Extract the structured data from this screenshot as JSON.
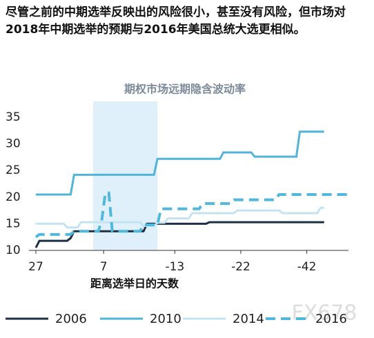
{
  "heading": "尽管之前的中期选举反映出的风险很小，甚至没有风险，但市场对2018年中期选举的预期与2016年美国总统大选更相似。",
  "watermark": "FX678",
  "chart_data": {
    "type": "line",
    "title": "期权市场远期隐含波动率",
    "x_label": "距离选举日的天数",
    "xlim": [
      0,
      90
    ],
    "ylim": [
      10,
      35
    ],
    "xticks": [
      {
        "value": 0,
        "label": "27"
      },
      {
        "value": 19.5,
        "label": "7"
      },
      {
        "value": 40,
        "label": "-13"
      },
      {
        "value": 59,
        "label": "-22"
      },
      {
        "value": 78,
        "label": "-42"
      }
    ],
    "yticks": [
      10,
      15,
      20,
      25,
      30,
      35
    ],
    "highlight_x": [
      16.5,
      35
    ],
    "highlight_color": "#dff0fa",
    "series": [
      {
        "name": "2006",
        "color": "#1c2f45",
        "dashed": false,
        "x": [
          0,
          1,
          9,
          10,
          11,
          31,
          32,
          49,
          50,
          83
        ],
        "values": [
          10.5,
          11.8,
          11.8,
          12.3,
          13.6,
          13.6,
          15.0,
          15.0,
          15.3,
          15.3
        ]
      },
      {
        "name": "2010",
        "color": "#4fb3da",
        "dashed": false,
        "x": [
          0,
          10,
          11,
          34,
          35,
          53,
          54,
          62,
          63,
          75,
          76,
          83
        ],
        "values": [
          20.5,
          20.5,
          24.2,
          24.2,
          27.2,
          27.2,
          28.4,
          28.4,
          27.6,
          27.6,
          32.3,
          32.3
        ]
      },
      {
        "name": "2014",
        "color": "#c3e3f2",
        "dashed": false,
        "x": [
          0,
          8,
          9,
          12,
          13,
          30,
          31,
          34,
          35,
          37,
          38,
          44,
          45,
          57,
          58,
          70,
          71,
          81,
          82,
          83
        ],
        "values": [
          15,
          15,
          14.3,
          14.3,
          15.3,
          15.3,
          14.6,
          14.6,
          15.2,
          15.2,
          16,
          16,
          17,
          17,
          17.5,
          17.5,
          17,
          17,
          18,
          18
        ]
      },
      {
        "name": "2016",
        "color": "#4fb8dc",
        "dashed": true,
        "x": [
          0,
          1,
          10,
          11,
          18,
          19,
          20,
          21,
          22,
          30,
          31,
          35,
          36,
          47,
          48,
          56,
          57,
          69,
          70,
          90
        ],
        "values": [
          12.5,
          13,
          13,
          13.6,
          13.6,
          15.8,
          20.8,
          20.8,
          13.6,
          13.6,
          14.8,
          14.8,
          17.8,
          17.8,
          18.8,
          18.8,
          19.5,
          19.5,
          20.5,
          20.5
        ]
      }
    ]
  }
}
